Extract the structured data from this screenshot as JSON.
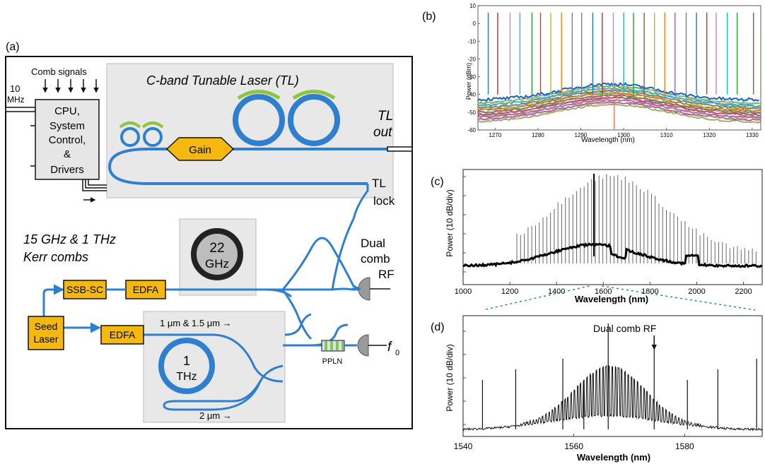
{
  "panel_a": {
    "letter": "(a)",
    "tl_title": "C-band Tunable Laser (TL)",
    "comb_signals": "Comb signals",
    "ten_mhz_1": "10",
    "ten_mhz_2": "MHz",
    "cpu_lines": [
      "CPU,",
      "System",
      "Control,",
      "&",
      "Drivers"
    ],
    "gain": "Gain",
    "tl_out_1": "TL",
    "tl_out_2": "out",
    "tl_lock_1": "TL",
    "tl_lock_2": "lock",
    "kerr_1": "15 GHz & 1 THz",
    "kerr_2": "Kerr combs",
    "ring22_1": "22",
    "ring22_2": "GHz",
    "ssb": "SSB-SC",
    "edfa_top": "EDFA",
    "edfa_bottom": "EDFA",
    "seed_1": "Seed",
    "seed_2": "Laser",
    "dual_comb_1": "Dual",
    "dual_comb_2": "comb",
    "dual_comb_3": "RF",
    "um_label_top": "1 μm & 1.5 μm →",
    "ring1_1": "1",
    "ring1_2": "THz",
    "um_label_bottom": "2 μm →",
    "ppln": "PPLN",
    "f0": "f",
    "f0_sub": "0",
    "colors": {
      "waveguide": "#2f7fd0",
      "box": "#f5b80f",
      "gray_box": "#e8e8e8",
      "ring_green": "#8cc63f"
    }
  },
  "chart_data": [
    {
      "id": "b",
      "letter": "(b)",
      "type": "line",
      "ylabel": "Power (dBm)",
      "xlabel": "Wavelength (nm)",
      "xlim": [
        1266,
        1332
      ],
      "ylim": [
        -60,
        10
      ],
      "xticks": [
        1270,
        1280,
        1290,
        1300,
        1310,
        1320,
        1330
      ],
      "yticks": [
        10,
        0,
        -10,
        -20,
        -30,
        -40,
        -50,
        -60
      ],
      "laser_lines_nm": [
        1268.4,
        1270.6,
        1273.5,
        1275.8,
        1278.6,
        1280.6,
        1283.0,
        1285.5,
        1288.0,
        1290.2,
        1292.8,
        1295.0,
        1297.6,
        1300.0,
        1302.3,
        1304.8,
        1307.2,
        1309.6,
        1312.0,
        1314.6,
        1317.0,
        1319.4,
        1321.6,
        1324.2,
        1326.5,
        1330.3
      ],
      "peak_dbm": 6,
      "floor_dbm": [
        -45,
        -36,
        -43
      ],
      "series_colors": [
        "#1f77b4",
        "#ff7f0e",
        "#2ca02c",
        "#d62728",
        "#9467bd",
        "#8c564b",
        "#e377c2",
        "#7f7f7f",
        "#bcbd22",
        "#17becf"
      ]
    },
    {
      "id": "c",
      "letter": "(c)",
      "type": "line",
      "ylabel": "Power (10 dB/div)",
      "xlabel": "Wavelength (nm)",
      "xlim": [
        1000,
        2280
      ],
      "xticks": [
        1000,
        1200,
        1400,
        1600,
        1800,
        2000,
        2200
      ],
      "comb_start_nm": 1230,
      "comb_end_nm": 2260,
      "comb_spacing_nm": 16,
      "center_nm": 1560
    },
    {
      "id": "d",
      "letter": "(d)",
      "type": "line",
      "ylabel": "Power (10 dB/div)",
      "xlabel": "Wavelength (nm)",
      "xlim": [
        1540,
        1594
      ],
      "xticks": [
        1540,
        1560,
        1580
      ],
      "annotation": "Dual comb RF",
      "annotation_nm": 1574.5,
      "spikes_nm": [
        1543.5,
        1549.5,
        1558.0,
        1561.8,
        1566.2,
        1574.5,
        1580.5,
        1586.0,
        1593.0
      ]
    }
  ]
}
